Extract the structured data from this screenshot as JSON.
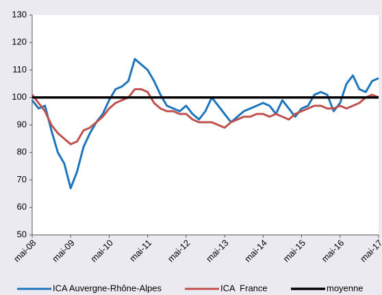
{
  "chart_data": {
    "type": "line",
    "categories": [
      "mai-08",
      null,
      null,
      null,
      null,
      null,
      "mai-09",
      null,
      null,
      null,
      null,
      null,
      "mai-10",
      null,
      null,
      null,
      null,
      null,
      "mai-11",
      null,
      null,
      null,
      null,
      null,
      "mai-12",
      null,
      null,
      null,
      null,
      null,
      "mai-13",
      null,
      null,
      null,
      null,
      null,
      "mai-14",
      null,
      null,
      null,
      null,
      null,
      "mai-15",
      null,
      null,
      null,
      null,
      null,
      "mai-16",
      null,
      null,
      null,
      null,
      null,
      "mai-17"
    ],
    "series": [
      {
        "name": "ICA Auvergne-Rhône-Alpes",
        "color": "#1c75bc",
        "width": 3,
        "values": [
          99,
          96,
          97,
          88,
          80,
          76,
          67,
          73,
          82,
          87,
          91,
          94,
          99,
          103,
          104,
          106,
          114,
          112,
          110,
          106,
          101,
          97,
          96,
          95,
          97,
          94,
          92,
          95,
          100,
          97,
          94,
          91,
          93,
          95,
          96,
          97,
          98,
          97,
          94,
          99,
          96,
          93,
          96,
          97,
          101,
          102,
          101,
          95,
          98,
          105,
          108,
          103,
          102,
          106,
          107
        ]
      },
      {
        "name": "ICA  France",
        "color": "#c0504d",
        "width": 3,
        "values": [
          101,
          98,
          95,
          90,
          87,
          85,
          83,
          84,
          88,
          89,
          91,
          93,
          96,
          98,
          99,
          100,
          103,
          103,
          102,
          98,
          96,
          95,
          95,
          94,
          94,
          92,
          91,
          91,
          91,
          90,
          89,
          91,
          92,
          93,
          93,
          94,
          94,
          93,
          94,
          93,
          92,
          94,
          95,
          96,
          97,
          97,
          96,
          96,
          97,
          96,
          97,
          98,
          100,
          101,
          100
        ]
      },
      {
        "name": "moyenne",
        "color": "#000000",
        "width": 3.5,
        "values": [
          100,
          100,
          100,
          100,
          100,
          100,
          100,
          100,
          100,
          100,
          100,
          100,
          100,
          100,
          100,
          100,
          100,
          100,
          100,
          100,
          100,
          100,
          100,
          100,
          100,
          100,
          100,
          100,
          100,
          100,
          100,
          100,
          100,
          100,
          100,
          100,
          100,
          100,
          100,
          100,
          100,
          100,
          100,
          100,
          100,
          100,
          100,
          100,
          100,
          100,
          100,
          100,
          100,
          100,
          100
        ]
      }
    ],
    "ylim": [
      50,
      130
    ],
    "yticks": [
      50,
      60,
      70,
      80,
      90,
      100,
      110,
      120,
      130
    ],
    "grid": false
  }
}
